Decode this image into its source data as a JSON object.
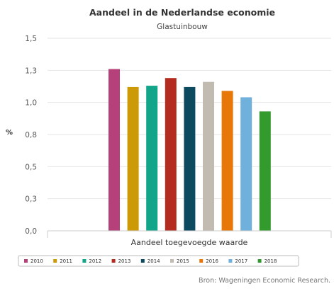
{
  "chart_data": {
    "type": "bar",
    "title": "Aandeel in de Nederlandse economie",
    "subtitle": "Glastuinbouw",
    "ylabel": "%",
    "categories": [
      "Aandeel toegevoegde waarde"
    ],
    "ylim": [
      0,
      1.5
    ],
    "yticks": [
      "0,0",
      "0,3",
      "0,5",
      "0,8",
      "1,0",
      "1,3",
      "1,5"
    ],
    "grid": true,
    "legend_position": "bottom",
    "series": [
      {
        "name": "2010",
        "values": [
          1.26
        ],
        "color": "#b5407a"
      },
      {
        "name": "2011",
        "values": [
          1.12
        ],
        "color": "#cc9a06"
      },
      {
        "name": "2012",
        "values": [
          1.13
        ],
        "color": "#12a58a"
      },
      {
        "name": "2013",
        "values": [
          1.19
        ],
        "color": "#b42c1f"
      },
      {
        "name": "2014",
        "values": [
          1.12
        ],
        "color": "#0b4a5f"
      },
      {
        "name": "2015",
        "values": [
          1.16
        ],
        "color": "#c2bbb2"
      },
      {
        "name": "2016",
        "values": [
          1.09
        ],
        "color": "#e8770a"
      },
      {
        "name": "2017",
        "values": [
          1.04
        ],
        "color": "#6fb0dc"
      },
      {
        "name": "2018",
        "values": [
          0.93
        ],
        "color": "#339a2e"
      }
    ],
    "credits": "Bron: Wageningen Economic Research."
  }
}
